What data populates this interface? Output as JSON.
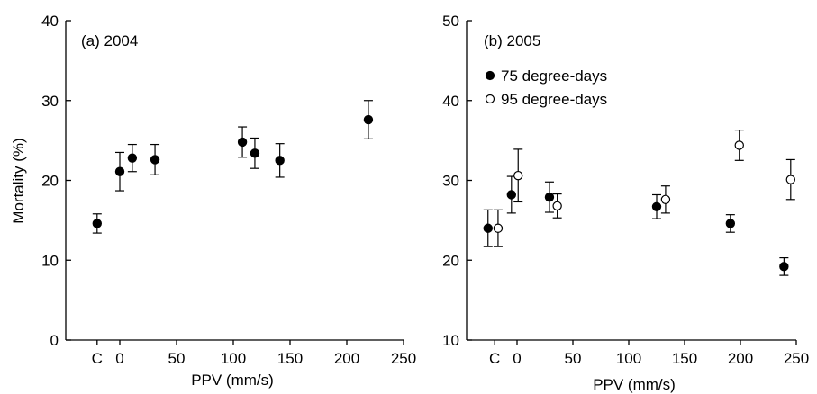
{
  "chart_data": [
    {
      "type": "scatter",
      "panel_label": "(a) 2004",
      "xlabel": "PPV (mm/s)",
      "ylabel": "Mortality (%)",
      "xlim": [
        -32,
        250
      ],
      "ylim": [
        0,
        40
      ],
      "x_ticks": [
        {
          "value": -20,
          "label": "C"
        },
        {
          "value": 0,
          "label": "0"
        },
        {
          "value": 50,
          "label": "50"
        },
        {
          "value": 100,
          "label": "100"
        },
        {
          "value": 150,
          "label": "150"
        },
        {
          "value": 200,
          "label": "200"
        },
        {
          "value": 250,
          "label": "250"
        }
      ],
      "y_ticks": [
        0,
        10,
        20,
        30,
        40
      ],
      "grid": false,
      "series": [
        {
          "marker": "filled",
          "points": [
            {
              "x": -20,
              "y": 14.6,
              "err": 1.2
            },
            {
              "x": 0,
              "y": 21.1,
              "err": 2.4
            },
            {
              "x": 11,
              "y": 22.8,
              "err": 1.7
            },
            {
              "x": 31,
              "y": 22.6,
              "err": 1.9
            },
            {
              "x": 108,
              "y": 24.8,
              "err": 1.9
            },
            {
              "x": 119,
              "y": 23.4,
              "err": 1.9
            },
            {
              "x": 141,
              "y": 22.5,
              "err": 2.1
            },
            {
              "x": 219,
              "y": 27.6,
              "err": 2.4
            }
          ]
        }
      ]
    },
    {
      "type": "scatter",
      "panel_label": "(b) 2005",
      "xlabel": "PPV (mm/s)",
      "ylabel": "",
      "xlim": [
        -32,
        250
      ],
      "ylim": [
        10,
        50
      ],
      "x_ticks": [
        {
          "value": -20,
          "label": "C"
        },
        {
          "value": 0,
          "label": "0"
        },
        {
          "value": 50,
          "label": "50"
        },
        {
          "value": 100,
          "label": "100"
        },
        {
          "value": 150,
          "label": "150"
        },
        {
          "value": 200,
          "label": "200"
        },
        {
          "value": 250,
          "label": "250"
        }
      ],
      "y_ticks": [
        10,
        20,
        30,
        40,
        50
      ],
      "grid": false,
      "legend_position": "top-left",
      "series": [
        {
          "name": "75 degree-days",
          "marker": "filled",
          "points": [
            {
              "x": -26,
              "y": 24.0,
              "err": 2.3
            },
            {
              "x": -5,
              "y": 28.2,
              "err": 2.3
            },
            {
              "x": 29,
              "y": 27.9,
              "err": 1.9
            },
            {
              "x": 125,
              "y": 26.7,
              "err": 1.5
            },
            {
              "x": 191,
              "y": 24.6,
              "err": 1.1
            },
            {
              "x": 239,
              "y": 19.2,
              "err": 1.1
            }
          ]
        },
        {
          "name": "95 degree-days",
          "marker": "open",
          "points": [
            {
              "x": -17,
              "y": 24.0,
              "err": 2.3
            },
            {
              "x": 1,
              "y": 30.6,
              "err": 3.3
            },
            {
              "x": 36,
              "y": 26.8,
              "err": 1.5
            },
            {
              "x": 133,
              "y": 27.6,
              "err": 1.7
            },
            {
              "x": 199,
              "y": 34.4,
              "err": 1.9
            },
            {
              "x": 245,
              "y": 30.1,
              "err": 2.5
            }
          ]
        }
      ]
    }
  ]
}
